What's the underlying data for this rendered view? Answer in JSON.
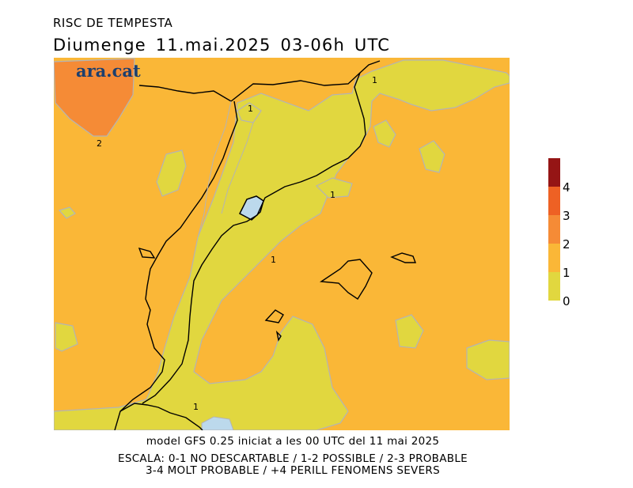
{
  "header": {
    "title": "RISC DE TEMPESTA",
    "subtitle": "Diumenge  11.mai.2025  03-06h  UTC"
  },
  "logo": "ara.cat",
  "map": {
    "contour_labels": [
      "1",
      "1",
      "2",
      "1",
      "1",
      "1"
    ],
    "colors": {
      "level_0_1": "#e1d73f",
      "level_1_2": "#fab737",
      "level_2_3": "#f58b36",
      "level_3_4": "#ee6124",
      "level_4_plus": "#951515",
      "water": "#bcd9ec"
    }
  },
  "legend": {
    "labels": [
      "4",
      "3",
      "2",
      "1",
      "0"
    ],
    "colors": [
      "#951515",
      "#ee6124",
      "#f58b36",
      "#fab737",
      "#e1d73f"
    ]
  },
  "footer": {
    "line1": "model GFS 0.25 iniciat a les 00 UTC del 11 mai 2025",
    "line2": "ESCALA: 0-1 NO DESCARTABLE / 1-2 POSSIBLE / 2-3 PROBABLE",
    "line3": "3-4 MOLT PROBABLE / +4 PERILL FENOMENS SEVERS"
  }
}
